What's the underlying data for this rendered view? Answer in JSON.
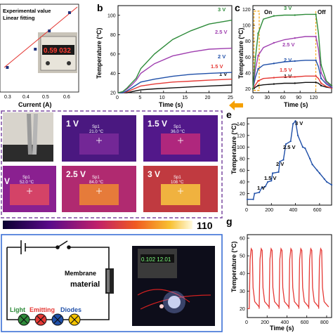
{
  "colors": {
    "red": "#e53935",
    "blue": "#1f4fa8",
    "green": "#2e8b3a",
    "purple": "#a040b0",
    "black": "#111111",
    "orange": "#f5a000",
    "dash_purple": "#7b4aa0",
    "blue_frame": "#3b6fd6"
  },
  "panel_a": {
    "legend": [
      "Experimental value",
      "Linear fitting"
    ],
    "xlabel": "Current (A)",
    "xticks": [
      "0.3",
      "0.4",
      "0.5",
      "0.6"
    ],
    "display_text": "0.59 032",
    "chart_data": {
      "type": "scatter",
      "x": [
        0.19,
        0.37,
        0.46,
        0.59
      ],
      "y": [
        1.0,
        2.0,
        3.0,
        4.0
      ],
      "xlim": [
        0.17,
        0.64
      ],
      "fit": "linear"
    }
  },
  "panel_b": {
    "letter": "b",
    "xlabel": "Time (s)",
    "ylabel": "Temperature (°C)",
    "xticks": [
      "0",
      "5",
      "10",
      "15",
      "20",
      "25"
    ],
    "yticks": [
      "20",
      "40",
      "60",
      "80",
      "100"
    ],
    "chart_data": {
      "type": "line",
      "xlim": [
        0,
        25
      ],
      "ylim": [
        20,
        110
      ],
      "series": [
        {
          "name": "1 V",
          "color": "#111111",
          "x": [
            0,
            1,
            2,
            3,
            4,
            5,
            8,
            12,
            16,
            20,
            25
          ],
          "y": [
            20,
            20,
            20,
            21,
            22,
            23,
            24,
            25,
            26,
            27,
            28
          ]
        },
        {
          "name": "1.5 V",
          "color": "#e53935",
          "x": [
            0,
            1,
            2,
            3,
            4,
            5,
            8,
            12,
            16,
            20,
            25
          ],
          "y": [
            20,
            20,
            21,
            23,
            25,
            27,
            29,
            31,
            32,
            33,
            34
          ]
        },
        {
          "name": "2 V",
          "color": "#1f4fa8",
          "x": [
            0,
            1,
            2,
            3,
            4,
            5,
            8,
            12,
            16,
            20,
            25
          ],
          "y": [
            20,
            20,
            22,
            25,
            28,
            31,
            34,
            37,
            39,
            40,
            41
          ]
        },
        {
          "name": "2.5 V",
          "color": "#a040b0",
          "x": [
            0,
            1,
            2,
            3,
            4,
            5,
            8,
            12,
            16,
            20,
            25
          ],
          "y": [
            20,
            21,
            24,
            28,
            33,
            40,
            50,
            58,
            62,
            65,
            66
          ]
        },
        {
          "name": "3 V",
          "color": "#2e8b3a",
          "x": [
            0,
            1,
            2,
            3,
            4,
            5,
            8,
            12,
            16,
            20,
            25
          ],
          "y": [
            20,
            21,
            25,
            30,
            35,
            45,
            60,
            75,
            84,
            91,
            95
          ]
        }
      ]
    }
  },
  "panel_c": {
    "letter": "c",
    "on_label": "On",
    "off_label": "Off",
    "xlabel": "Time (s)",
    "ylabel": "Temperature (°C)",
    "xticks": [
      "0",
      "30",
      "60",
      "90",
      "120"
    ],
    "yticks": [
      "20",
      "40",
      "60",
      "80",
      "100",
      "120"
    ],
    "chart_data": {
      "type": "line",
      "xlim": [
        0,
        150
      ],
      "ylim": [
        15,
        125
      ],
      "series": [
        {
          "name": "1 V",
          "color": "#111111",
          "x": [
            0,
            5,
            10,
            20,
            40,
            60,
            80,
            100,
            120,
            125,
            130,
            140,
            150
          ],
          "y": [
            20,
            22,
            24,
            25,
            26,
            27,
            27,
            28,
            28,
            27,
            24,
            22,
            21
          ]
        },
        {
          "name": "1.5 V",
          "color": "#e53935",
          "x": [
            0,
            5,
            10,
            20,
            40,
            60,
            80,
            100,
            120,
            125,
            130,
            140,
            150
          ],
          "y": [
            20,
            25,
            30,
            33,
            34,
            35,
            35,
            36,
            36,
            33,
            27,
            23,
            21
          ]
        },
        {
          "name": "2 V",
          "color": "#1f4fa8",
          "x": [
            0,
            5,
            10,
            20,
            40,
            60,
            80,
            100,
            120,
            125,
            130,
            140,
            150
          ],
          "y": [
            20,
            35,
            45,
            50,
            52,
            54,
            55,
            56,
            56,
            48,
            33,
            26,
            22
          ]
        },
        {
          "name": "2.5 V",
          "color": "#a040b0",
          "x": [
            0,
            5,
            10,
            20,
            40,
            60,
            80,
            100,
            120,
            125,
            130,
            140,
            150
          ],
          "y": [
            20,
            45,
            62,
            72,
            78,
            82,
            84,
            86,
            86,
            70,
            40,
            28,
            23
          ]
        },
        {
          "name": "3 V",
          "color": "#2e8b3a",
          "x": [
            0,
            5,
            10,
            20,
            40,
            60,
            80,
            100,
            120,
            125,
            130,
            140,
            150
          ],
          "y": [
            20,
            60,
            90,
            108,
            112,
            113,
            113,
            114,
            114,
            90,
            50,
            30,
            24
          ]
        }
      ]
    }
  },
  "panel_d": {
    "photo_labels": [
      "1 V",
      "1.5 V",
      "",
      "2.5 V",
      "3 V"
    ],
    "sp_labels": [
      "Sp1\n21.0 °C",
      "Sp1\n36.0 °C",
      "Sp1\n52.0 °C",
      "Sp1\n84.0 °C",
      "Sp1\n108 °C"
    ],
    "cb_max": "110"
  },
  "panel_e": {
    "letter": "e",
    "ylabel": "Temperature (°C)",
    "yticks": [
      "20",
      "40",
      "60",
      "80",
      "100",
      "120",
      "140"
    ],
    "xticks": [
      "0",
      "200",
      "400",
      "600"
    ],
    "step_labels": [
      "1 V",
      "1.5 V",
      "2 V",
      "2.5 V",
      "3 V"
    ],
    "chart_data": {
      "type": "line",
      "xlim": [
        0,
        700
      ],
      "ylim": [
        0,
        150
      ],
      "x": [
        0,
        50,
        60,
        100,
        120,
        150,
        170,
        200,
        210,
        260,
        270,
        300,
        320,
        360,
        380,
        400,
        420,
        460,
        480,
        520,
        540,
        580,
        600,
        640,
        660,
        700
      ],
      "y": [
        10,
        10,
        20,
        22,
        30,
        32,
        40,
        42,
        55,
        57,
        75,
        78,
        105,
        110,
        140,
        145,
        120,
        100,
        98,
        80,
        70,
        60,
        55,
        45,
        40,
        35
      ]
    }
  },
  "panel_f": {
    "label_membrane": "Membrane",
    "label_material": "material",
    "leds_light": "Light",
    "leds_emitting": "Emitting",
    "leds_diodes": "Diodes",
    "psu_display": "0.102 12.01"
  },
  "panel_g": {
    "letter": "g",
    "xlabel": "Time (s)",
    "ylabel": "Temperature (°C)",
    "xticks": [
      "0",
      "200",
      "400",
      "600",
      "800"
    ],
    "yticks": [
      "20",
      "30",
      "40",
      "50",
      "60"
    ],
    "chart_data": {
      "type": "line",
      "xlim": [
        0,
        850
      ],
      "ylim": [
        15,
        62
      ],
      "cycles": 8,
      "low": 20,
      "high": 54
    }
  }
}
